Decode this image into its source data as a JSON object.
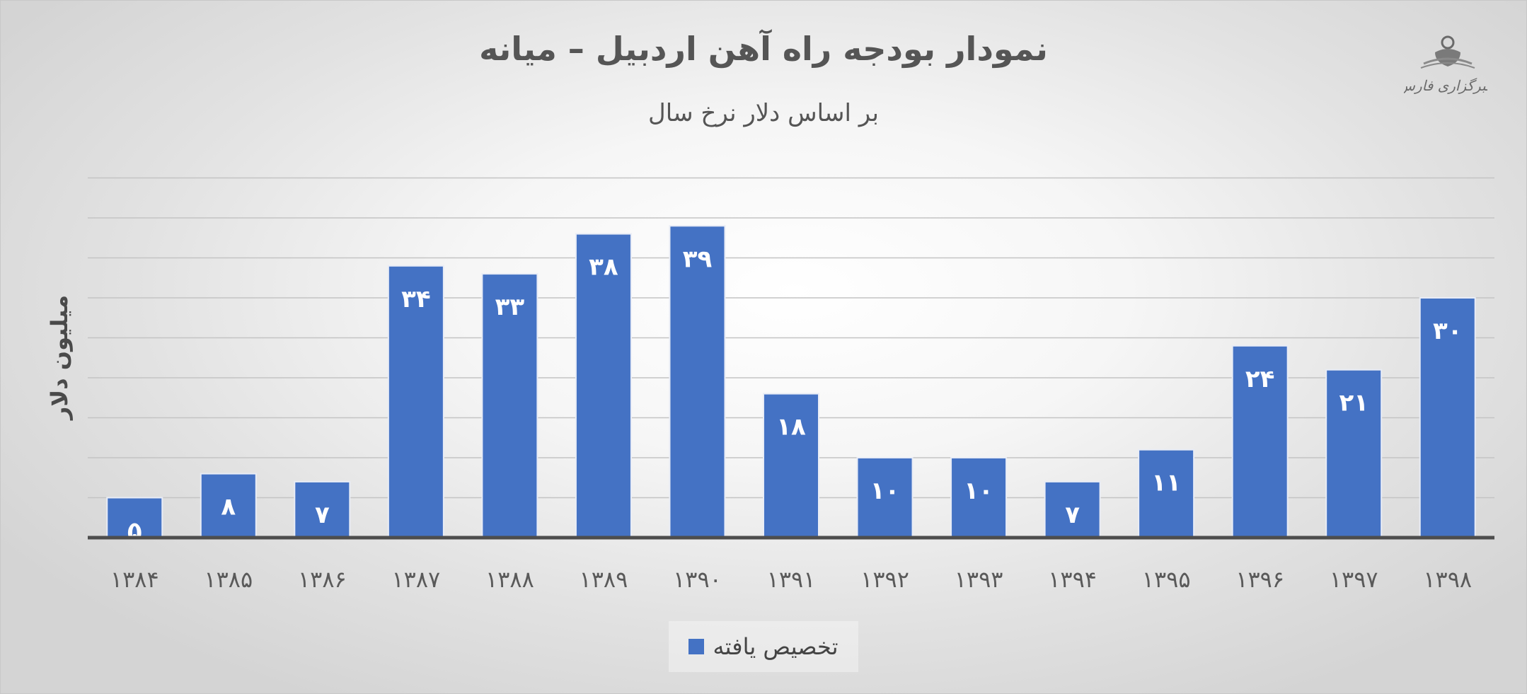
{
  "logo": {
    "text": "خبرگزاری فارس",
    "icon": "fars-news-agency-logo"
  },
  "chart_data": {
    "type": "bar",
    "title": "نمودار بودجه راه آهن اردبیل – میانه",
    "subtitle": "بر اساس دلار نرخ سال",
    "ylabel": "میلیون دلار",
    "xlabel": "",
    "categories": [
      "۱۳۸۴",
      "۱۳۸۵",
      "۱۳۸۶",
      "۱۳۸۷",
      "۱۳۸۸",
      "۱۳۸۹",
      "۱۳۹۰",
      "۱۳۹۱",
      "۱۳۹۲",
      "۱۳۹۳",
      "۱۳۹۴",
      "۱۳۹۵",
      "۱۳۹۶",
      "۱۳۹۷",
      "۱۳۹۸"
    ],
    "series": [
      {
        "name": "تخصیص یافته",
        "values": [
          5,
          8,
          7,
          34,
          33,
          38,
          39,
          18,
          10,
          10,
          7,
          11,
          24,
          21,
          30
        ],
        "labels": [
          "۵",
          "۸",
          "۷",
          "۳۴",
          "۳۳",
          "۳۸",
          "۳۹",
          "۱۸",
          "۱۰",
          "۱۰",
          "۷",
          "۱۱",
          "۲۴",
          "۲۱",
          "۳۰"
        ],
        "color": "#4472C4"
      }
    ],
    "ylim": [
      0,
      45
    ],
    "grid": true,
    "legend": "bottom",
    "data_labels": "inside-end"
  }
}
